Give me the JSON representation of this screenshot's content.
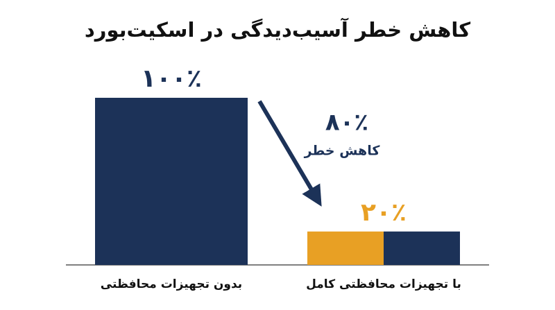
{
  "chart_data": {
    "type": "bar",
    "title": "کاهش خطر آسیب‌دیدگی در اسکیت‌بورد",
    "categories": [
      "بدون تجهیزات محافظتی",
      "با تجهیزات محافظتی کامل"
    ],
    "values": [
      100,
      20
    ],
    "value_labels": [
      "۱۰۰٪",
      "۲۰٪"
    ],
    "colors": [
      "#1c3258",
      "#e8a024"
    ],
    "annotation": {
      "value": "۸۰٪",
      "text": "کاهش خطر"
    }
  }
}
